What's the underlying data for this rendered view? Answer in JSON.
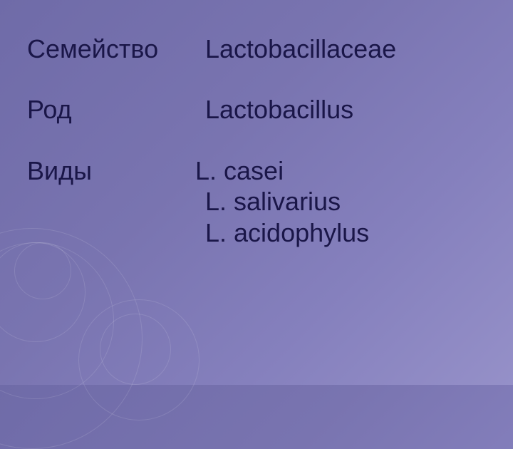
{
  "slide": {
    "background_gradient": [
      "#6f6ba8",
      "#7974b0",
      "#8580bd",
      "#9590c8"
    ],
    "text_color": "#1a1648",
    "font_size_pt": 27,
    "font_family": "Arial",
    "rows": {
      "family": {
        "label": "Семейство",
        "value": "Lactobacillaceae"
      },
      "genus": {
        "label": "Род",
        "value": "Lactobacillus"
      },
      "species": {
        "label": "Виды",
        "values": [
          "L. casei",
          "L. salivarius",
          "L. acidophylus"
        ]
      }
    },
    "circle_accent_color": "rgba(255,255,255,0.12)"
  }
}
